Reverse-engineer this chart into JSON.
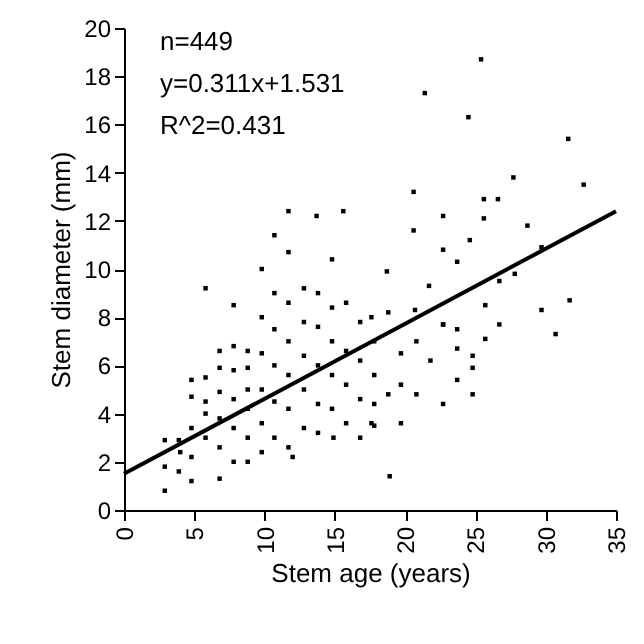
{
  "chart_data": {
    "type": "scatter",
    "xlabel": "Stem age (years)",
    "ylabel": "Stem diameter (mm)",
    "annotations": [
      "n=449",
      "y=0.311x+1.531",
      "R^2=0.431"
    ],
    "xlim": [
      0,
      35
    ],
    "xticks": [
      0,
      5,
      10,
      15,
      20,
      25,
      30,
      35
    ],
    "ylim": [
      0,
      20
    ],
    "yticks": [
      0,
      2,
      4,
      6,
      8,
      10,
      12,
      14,
      16,
      18,
      20
    ],
    "grid": false,
    "marker": "square",
    "series": [
      {
        "type": "scatter",
        "color": "#000000",
        "x": [
          2.9,
          2.9,
          2.9,
          3.9,
          3.9,
          4.0,
          4.8,
          4.8,
          4.8,
          4.8,
          4.8,
          5.8,
          5.8,
          5.8,
          5.8,
          5.8,
          6.8,
          6.8,
          6.8,
          6.8,
          6.8,
          6.8,
          7.8,
          7.8,
          7.8,
          7.8,
          7.8,
          7.8,
          8.8,
          8.8,
          8.8,
          8.8,
          8.8,
          8.8,
          9.8,
          9.8,
          9.8,
          9.8,
          9.8,
          9.8,
          10.7,
          10.7,
          10.7,
          10.7,
          10.7,
          10.7,
          11.7,
          11.7,
          11.7,
          11.7,
          11.7,
          11.7,
          11.7,
          12.0,
          12.8,
          12.8,
          12.8,
          12.8,
          12.8,
          13.7,
          13.8,
          13.8,
          13.8,
          13.8,
          13.8,
          14.8,
          14.8,
          14.8,
          14.8,
          14.8,
          14.9,
          15.6,
          15.8,
          15.8,
          15.8,
          15.8,
          16.8,
          16.8,
          16.8,
          16.8,
          17.6,
          17.6,
          17.8,
          17.8,
          17.8,
          17.8,
          18.7,
          18.8,
          18.8,
          18.9,
          19.7,
          19.7,
          19.7,
          20.6,
          20.6,
          20.7,
          20.8,
          20.8,
          21.4,
          21.7,
          21.8,
          22.7,
          22.7,
          22.7,
          22.7,
          22.7,
          23.7,
          23.7,
          23.7,
          23.7,
          24.5,
          24.6,
          24.8,
          24.8,
          24.8,
          25.4,
          25.6,
          25.6,
          25.7,
          25.7,
          26.6,
          26.7,
          26.7,
          27.7,
          27.8,
          28.7,
          29.7,
          29.7,
          30.7,
          31.6,
          31.7,
          32.7
        ],
        "values": [
          0.8,
          2.9,
          1.8,
          2.9,
          1.6,
          2.4,
          5.4,
          4.7,
          1.2,
          2.2,
          3.4,
          9.2,
          4.0,
          3.0,
          4.5,
          5.5,
          5.9,
          1.3,
          2.6,
          3.8,
          4.9,
          6.6,
          8.5,
          6.8,
          2.0,
          3.4,
          4.6,
          5.8,
          5.9,
          2.0,
          3.0,
          4.2,
          5.0,
          6.6,
          10.0,
          2.4,
          3.6,
          5.0,
          6.5,
          8.0,
          11.4,
          3.0,
          4.5,
          6.0,
          7.5,
          9.0,
          12.4,
          10.7,
          2.6,
          4.2,
          5.6,
          7.0,
          8.6,
          2.2,
          9.2,
          3.4,
          5.0,
          6.4,
          7.8,
          12.2,
          3.2,
          4.4,
          6.0,
          7.6,
          9.0,
          10.4,
          4.2,
          5.6,
          7.0,
          8.4,
          3.0,
          12.4,
          3.6,
          5.2,
          6.6,
          8.6,
          3.0,
          4.6,
          6.2,
          7.8,
          8.0,
          3.6,
          3.5,
          4.4,
          5.6,
          7.0,
          9.9,
          8.2,
          4.8,
          1.4,
          6.5,
          3.6,
          5.2,
          13.2,
          11.6,
          8.3,
          7.0,
          4.8,
          17.3,
          9.3,
          6.2,
          12.2,
          10.8,
          7.7,
          4.4,
          7.7,
          10.3,
          7.5,
          6.7,
          5.4,
          16.3,
          11.2,
          6.4,
          5.9,
          4.8,
          18.7,
          12.9,
          12.1,
          8.5,
          7.1,
          12.9,
          9.5,
          7.7,
          13.8,
          9.8,
          11.8,
          10.9,
          8.3,
          7.3,
          15.4,
          8.7,
          13.5
        ]
      },
      {
        "type": "line",
        "color": "#000000",
        "marker": "none",
        "line_style": "solid",
        "x": [
          0,
          35
        ],
        "values": [
          1.5,
          12.4
        ]
      }
    ]
  }
}
